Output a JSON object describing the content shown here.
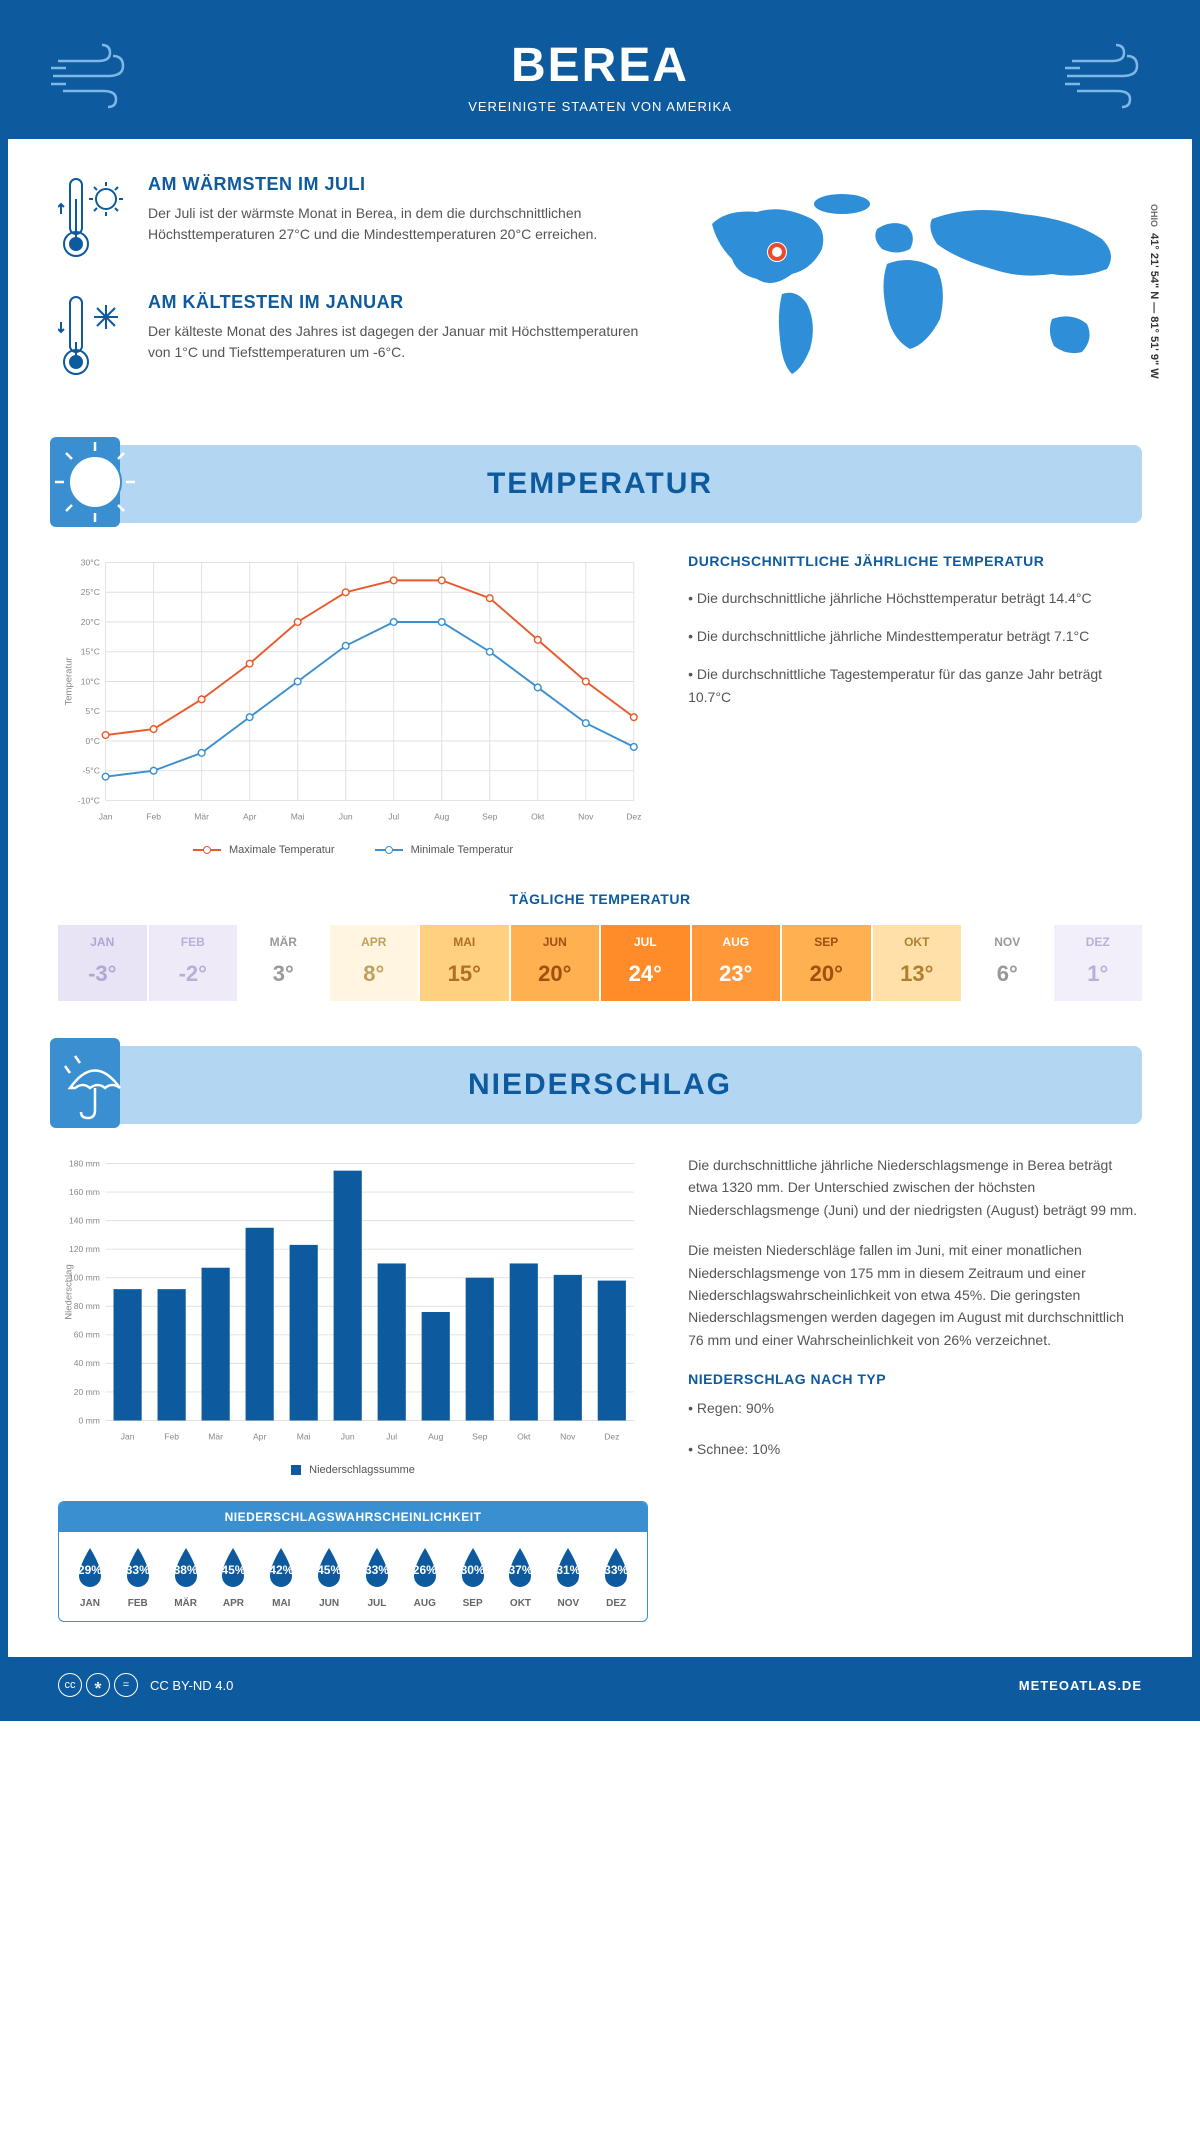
{
  "header": {
    "city": "BEREA",
    "country": "VEREINIGTE STAATEN VON AMERIKA"
  },
  "coords": {
    "text": "41° 21' 54\" N — 81° 51' 9\" W",
    "state": "OHIO"
  },
  "facts": {
    "warm": {
      "title": "AM WÄRMSTEN IM JULI",
      "text": "Der Juli ist der wärmste Monat in Berea, in dem die durchschnittlichen Höchsttemperaturen 27°C und die Mindesttemperaturen 20°C erreichen."
    },
    "cold": {
      "title": "AM KÄLTESTEN IM JANUAR",
      "text": "Der kälteste Monat des Jahres ist dagegen der Januar mit Höchsttemperaturen von 1°C und Tiefsttemperaturen um -6°C."
    }
  },
  "temperature": {
    "section_title": "TEMPERATUR",
    "info_title": "DURCHSCHNITTLICHE JÄHRLICHE TEMPERATUR",
    "bullets": [
      "• Die durchschnittliche jährliche Höchsttemperatur beträgt 14.4°C",
      "• Die durchschnittliche jährliche Mindesttemperatur beträgt 7.1°C",
      "• Die durchschnittliche Tagestemperatur für das ganze Jahr beträgt 10.7°C"
    ],
    "chart": {
      "months": [
        "Jan",
        "Feb",
        "Mär",
        "Apr",
        "Mai",
        "Jun",
        "Jul",
        "Aug",
        "Sep",
        "Okt",
        "Nov",
        "Dez"
      ],
      "max_series": [
        1,
        2,
        7,
        13,
        20,
        25,
        27,
        27,
        24,
        17,
        10,
        4
      ],
      "min_series": [
        -6,
        -5,
        -2,
        4,
        10,
        16,
        20,
        20,
        15,
        9,
        3,
        -1
      ],
      "max_color": "#e85a2c",
      "min_color": "#3a8fd0",
      "ylim": [
        -10,
        30
      ],
      "ytick_step": 5,
      "ylabel": "Temperatur",
      "legend_max": "Maximale Temperatur",
      "legend_min": "Minimale Temperatur",
      "grid_color": "#e0e0e0",
      "line_width": 2
    },
    "daily": {
      "title": "TÄGLICHE TEMPERATUR",
      "months": [
        "JAN",
        "FEB",
        "MÄR",
        "APR",
        "MAI",
        "JUN",
        "JUL",
        "AUG",
        "SEP",
        "OKT",
        "NOV",
        "DEZ"
      ],
      "values": [
        "-3°",
        "-2°",
        "3°",
        "8°",
        "15°",
        "20°",
        "24°",
        "23°",
        "20°",
        "13°",
        "6°",
        "1°"
      ],
      "bg_colors": [
        "#e8e4f5",
        "#eeeaf7",
        "#ffffff",
        "#fff5e0",
        "#ffd080",
        "#ffb050",
        "#ff8c28",
        "#ff9838",
        "#ffb050",
        "#ffe0a8",
        "#ffffff",
        "#f2effa"
      ],
      "text_colors": [
        "#b0a8d0",
        "#b8b0d8",
        "#999",
        "#c0a060",
        "#b07020",
        "#a05010",
        "#ffffff",
        "#ffffff",
        "#a05010",
        "#b08030",
        "#999",
        "#b8b0d8"
      ]
    }
  },
  "precipitation": {
    "section_title": "NIEDERSCHLAG",
    "text1": "Die durchschnittliche jährliche Niederschlagsmenge in Berea beträgt etwa 1320 mm. Der Unterschied zwischen der höchsten Niederschlagsmenge (Juni) und der niedrigsten (August) beträgt 99 mm.",
    "text2": "Die meisten Niederschläge fallen im Juni, mit einer monatlichen Niederschlagsmenge von 175 mm in diesem Zeitraum und einer Niederschlagswahrscheinlichkeit von etwa 45%. Die geringsten Niederschlagsmengen werden dagegen im August mit durchschnittlich 76 mm und einer Wahrscheinlichkeit von 26% verzeichnet.",
    "type_title": "NIEDERSCHLAG NACH TYP",
    "type_rain": "• Regen: 90%",
    "type_snow": "• Schnee: 10%",
    "chart": {
      "months": [
        "Jan",
        "Feb",
        "Mär",
        "Apr",
        "Mai",
        "Jun",
        "Jul",
        "Aug",
        "Sep",
        "Okt",
        "Nov",
        "Dez"
      ],
      "values": [
        92,
        92,
        107,
        135,
        123,
        175,
        110,
        76,
        100,
        110,
        102,
        98
      ],
      "bar_color": "#0d5a9e",
      "ylim": [
        0,
        180
      ],
      "ytick_step": 20,
      "ylabel": "Niederschlag",
      "legend": "Niederschlagssumme",
      "grid_color": "#e0e0e0"
    },
    "probability": {
      "title": "NIEDERSCHLAGSWAHRSCHEINLICHKEIT",
      "months": [
        "JAN",
        "FEB",
        "MÄR",
        "APR",
        "MAI",
        "JUN",
        "JUL",
        "AUG",
        "SEP",
        "OKT",
        "NOV",
        "DEZ"
      ],
      "values": [
        "29%",
        "33%",
        "38%",
        "45%",
        "42%",
        "45%",
        "33%",
        "26%",
        "30%",
        "37%",
        "31%",
        "33%"
      ],
      "drop_color": "#0d5a9e"
    }
  },
  "footer": {
    "license": "CC BY-ND 4.0",
    "site": "METEOATLAS.DE"
  },
  "colors": {
    "primary": "#0d5a9e",
    "light_blue": "#b3d7f2",
    "mid_blue": "#3a8fd0",
    "map_blue": "#2e8fd8",
    "marker": "#e84c2c"
  }
}
